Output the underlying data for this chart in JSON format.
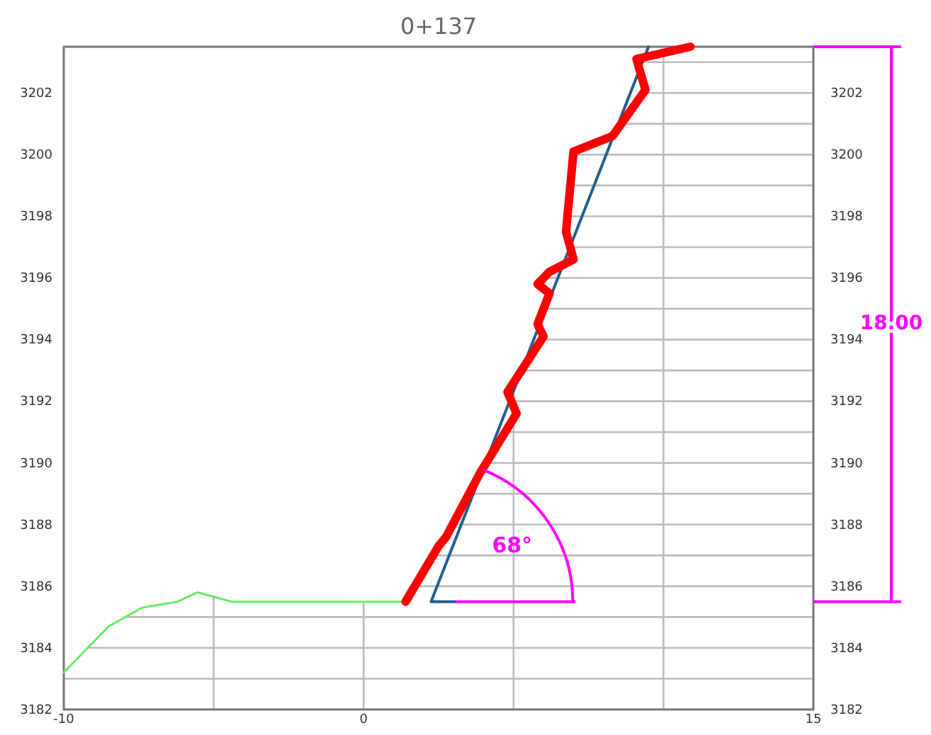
{
  "chart_data": {
    "type": "line",
    "title": "0+137",
    "xlim": [
      -10,
      15
    ],
    "xticks": [
      -10,
      {
        "value": -5,
        "label": null
      },
      0,
      {
        "value": 5,
        "label": null
      },
      {
        "value": 10,
        "label": null
      },
      15
    ],
    "ylim": [
      3182,
      3203.5
    ],
    "yticks": [
      3182,
      {
        "value": 3183,
        "label": null
      },
      3184,
      {
        "value": 3185,
        "label": null
      },
      3186,
      {
        "value": 3187,
        "label": null
      },
      3188,
      {
        "value": 3189,
        "label": null
      },
      3190,
      {
        "value": 3191,
        "label": null
      },
      3192,
      {
        "value": 3193,
        "label": null
      },
      3194,
      {
        "value": 3195,
        "label": null
      },
      3196,
      {
        "value": 3197,
        "label": null
      },
      3198,
      {
        "value": 3199,
        "label": null
      },
      3200,
      {
        "value": 3201,
        "label": null
      },
      3202,
      {
        "value": 3203,
        "label": null
      }
    ],
    "y2lim": [
      3182,
      3203.5
    ],
    "y2ticks": [
      3182,
      3184,
      3186,
      3188,
      3190,
      3192,
      3194,
      3196,
      3198,
      3200,
      3202
    ],
    "grid": true,
    "marker": "none",
    "line_style": "solid",
    "series": [
      {
        "color": "#66ee66",
        "x": [
          -10,
          -8.5,
          -7.4,
          -6.2,
          -5.55,
          -4.4,
          1.4
        ],
        "values": [
          3183.2,
          3184.7,
          3185.3,
          3185.5,
          3185.8,
          3185.5,
          3185.5
        ]
      },
      {
        "color": "#1f5f8f",
        "x": [
          3.07,
          2.25,
          9.5
        ],
        "values": [
          3185.5,
          3185.5,
          3203.5
        ]
      },
      {
        "color": "#ff0000",
        "x": [
          1.4,
          2.5,
          2.75,
          3.9,
          5.1,
          4.8,
          6.0,
          5.8,
          6.2,
          5.8,
          6.2,
          7.0,
          6.75,
          7.0,
          8.3,
          9.4,
          9.1,
          10.9
        ],
        "values": [
          3185.5,
          3187.3,
          3187.6,
          3189.7,
          3191.6,
          3192.3,
          3194.1,
          3194.5,
          3195.5,
          3195.8,
          3196.2,
          3196.6,
          3197.5,
          3200.1,
          3200.6,
          3202.1,
          3203.1,
          3203.5
        ]
      }
    ],
    "annotations": [
      "68°",
      "18.00"
    ]
  }
}
